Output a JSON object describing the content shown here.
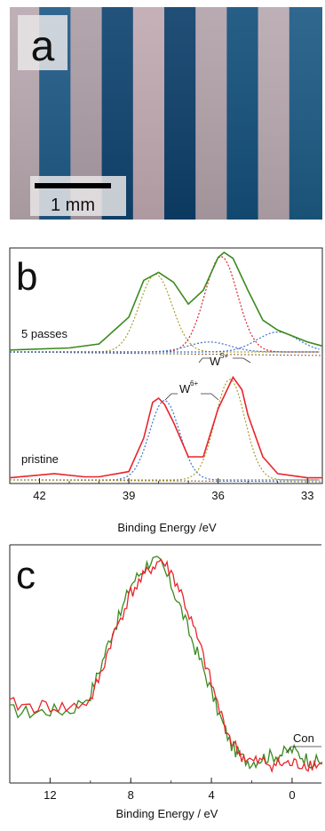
{
  "panel_a": {
    "label": "a",
    "scale_bar_label": "1 mm",
    "stripe_colors": [
      "#b9aab0",
      "#1f5a86",
      "#ad9ea6",
      "#0f4470",
      "#c2aab2",
      "#0d3f6a",
      "#b3a3ab",
      "#14507c",
      "#b9a9b1",
      "#1d5a84"
    ]
  },
  "panel_b": {
    "label": "b",
    "x_axis_title": "Binding Energy /eV",
    "x_ticks": [
      "42",
      "39",
      "36",
      "33"
    ],
    "curve_label_top": "5 passes",
    "curve_label_bottom": "pristine",
    "annotation_w5": "W",
    "annotation_w5_sup": "5+",
    "annotation_w6": "W",
    "annotation_w6_sup": "6+"
  },
  "panel_c": {
    "label": "c",
    "x_axis_title": "Binding Energy / eV",
    "x_ticks": [
      "12",
      "8",
      "4",
      "0"
    ],
    "annotation_con": "Con"
  },
  "colors": {
    "green": "#3a8a1e",
    "red": "#e8242b",
    "blue_dotted": "#3e74c8",
    "red_dotted": "#d8262a",
    "olive_dotted": "#a8a032",
    "baseline": "#8a5a2a"
  },
  "chart_data": [
    {
      "type": "line",
      "panel": "b",
      "xlabel": "Binding Energy /eV",
      "xlim": [
        43,
        32.5
      ],
      "x_ticks": [
        42,
        39,
        36,
        33
      ],
      "series": [
        {
          "name": "5 passes",
          "x": [
            43,
            41,
            40,
            39,
            38.5,
            38,
            37.5,
            37,
            36.5,
            36,
            35.8,
            35.5,
            35,
            34.5,
            34,
            33.5,
            33,
            32.5
          ],
          "y": [
            0.02,
            0.04,
            0.08,
            0.35,
            0.72,
            0.8,
            0.7,
            0.48,
            0.62,
            0.95,
            1.0,
            0.94,
            0.62,
            0.32,
            0.22,
            0.16,
            0.1,
            0.06
          ]
        },
        {
          "name": "pristine",
          "x": [
            43,
            41.5,
            40.5,
            40,
            39,
            38.5,
            38.2,
            38,
            37.8,
            37.5,
            37,
            36.5,
            36,
            35.5,
            35.2,
            35,
            34.5,
            34,
            33,
            32.5
          ],
          "y": [
            0.02,
            0.06,
            0.03,
            0.03,
            0.08,
            0.4,
            0.74,
            0.78,
            0.72,
            0.55,
            0.22,
            0.22,
            0.68,
            0.98,
            0.86,
            0.62,
            0.22,
            0.06,
            0.02,
            0.02
          ]
        }
      ]
    },
    {
      "type": "line",
      "panel": "c",
      "xlabel": "Binding Energy / eV",
      "xlim": [
        14,
        -1.5
      ],
      "x_ticks": [
        12,
        8,
        4,
        0
      ],
      "series": [
        {
          "name": "green",
          "x": [
            14,
            13,
            12,
            11,
            10,
            9.5,
            9,
            8.5,
            8,
            7.5,
            7,
            6.5,
            6,
            5.5,
            5,
            4.5,
            4,
            3.5,
            3,
            2.5,
            2,
            1.5,
            1,
            0.5,
            0,
            -0.5,
            -1,
            -1.5
          ],
          "y": [
            0.27,
            0.26,
            0.27,
            0.27,
            0.35,
            0.48,
            0.63,
            0.74,
            0.88,
            0.94,
            1.0,
            0.98,
            0.88,
            0.76,
            0.62,
            0.5,
            0.36,
            0.22,
            0.1,
            0.04,
            0.02,
            0.04,
            0.05,
            0.06,
            0.08,
            0.05,
            0.02,
            0.02
          ]
        },
        {
          "name": "red",
          "x": [
            14,
            13,
            12,
            11,
            10,
            9.5,
            9,
            8.5,
            8,
            7.5,
            7,
            6.5,
            6,
            5.5,
            5,
            4.5,
            4,
            3.5,
            3,
            2.5,
            2,
            1.5,
            1,
            0.5,
            0,
            -0.5,
            -1,
            -1.5
          ],
          "y": [
            0.3,
            0.29,
            0.29,
            0.28,
            0.32,
            0.44,
            0.6,
            0.72,
            0.84,
            0.9,
            0.96,
            1.0,
            0.94,
            0.84,
            0.7,
            0.56,
            0.4,
            0.24,
            0.12,
            0.05,
            0.02,
            0.02,
            0.01,
            0.01,
            0.01,
            0.01,
            0.01,
            0.01
          ]
        }
      ]
    }
  ]
}
